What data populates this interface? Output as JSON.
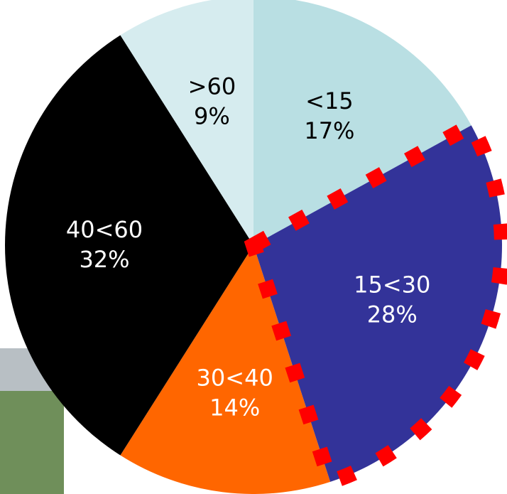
{
  "chart_data": {
    "type": "pie",
    "categories": [
      "<15",
      "15<30",
      "30<40",
      "40<60",
      ">60"
    ],
    "values": [
      17,
      28,
      14,
      32,
      9
    ],
    "value_labels": [
      "17%",
      "28%",
      "14%",
      "32%",
      "9%"
    ],
    "colors": [
      "#b9dfe3",
      "#333399",
      "#ff6600",
      "#000000",
      "#d6ecef"
    ],
    "label_colors": [
      "#000000",
      "#ffffff",
      "#ffffff",
      "#ffffff",
      "#000000"
    ],
    "highlight": 1,
    "highlight_color": "#ff0000"
  }
}
